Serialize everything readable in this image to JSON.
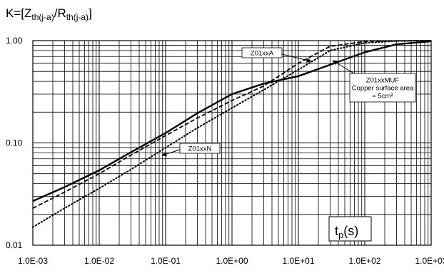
{
  "chart_data": {
    "type": "line",
    "title": {
      "prefix": "K=[Z",
      "sub1": "th(j-a)",
      "mid": "/R",
      "sub2": "th(j-a)",
      "suffix": "]"
    },
    "xlabel": {
      "main": "t",
      "sub": "p",
      "rest": "(s)"
    },
    "x_scale": "log",
    "y_scale": "log",
    "xlim": [
      0.001,
      1000
    ],
    "ylim": [
      0.01,
      1.0
    ],
    "x_tick_labels": [
      "1.0E-03",
      "1.0E-02",
      "1.0E-01",
      "1.0E+00",
      "1.0E+01",
      "1.0E+02",
      "1.0E+03"
    ],
    "y_tick_labels": [
      "0.01",
      "0.10",
      "1.00"
    ],
    "x_ticks": [
      0.001,
      0.01,
      0.1,
      1,
      10,
      100,
      1000
    ],
    "y_ticks": [
      0.01,
      0.1,
      1
    ],
    "grid": true,
    "series": [
      {
        "name": "Z01xxMUF",
        "note_lines": [
          "Z01xxMUF",
          "Copper surface area",
          "= 5cm²"
        ],
        "style": "solid",
        "x": [
          0.001,
          0.003,
          0.01,
          0.03,
          0.1,
          0.3,
          1,
          3,
          10,
          30,
          100,
          300,
          1000
        ],
        "y": [
          0.027,
          0.037,
          0.054,
          0.081,
          0.125,
          0.195,
          0.3,
          0.38,
          0.45,
          0.58,
          0.77,
          0.92,
          0.985
        ]
      },
      {
        "name": "Z01xxA",
        "style": "dashed",
        "x": [
          0.001,
          0.003,
          0.01,
          0.03,
          0.1,
          0.3,
          1,
          3,
          10,
          30,
          100,
          300,
          1000
        ],
        "y": [
          0.023,
          0.033,
          0.05,
          0.076,
          0.118,
          0.175,
          0.26,
          0.36,
          0.6,
          0.88,
          0.98,
          0.995,
          1.0
        ]
      },
      {
        "name": "Z01xxN",
        "style": "dotted",
        "x": [
          0.001,
          0.003,
          0.01,
          0.03,
          0.1,
          0.3,
          1,
          3,
          10,
          30,
          100,
          300,
          1000
        ],
        "y": [
          0.015,
          0.023,
          0.036,
          0.055,
          0.09,
          0.14,
          0.22,
          0.33,
          0.52,
          0.8,
          0.95,
          0.99,
          1.0
        ]
      }
    ],
    "annotations": [
      {
        "series": "Z01xxA",
        "text": "Z01xxA"
      },
      {
        "series": "Z01xxMUF",
        "text_lines": [
          "Z01xxMUF",
          "Copper surface area",
          "= 5cm²"
        ]
      },
      {
        "series": "Z01xxN",
        "text": "Z01xxN"
      }
    ]
  }
}
